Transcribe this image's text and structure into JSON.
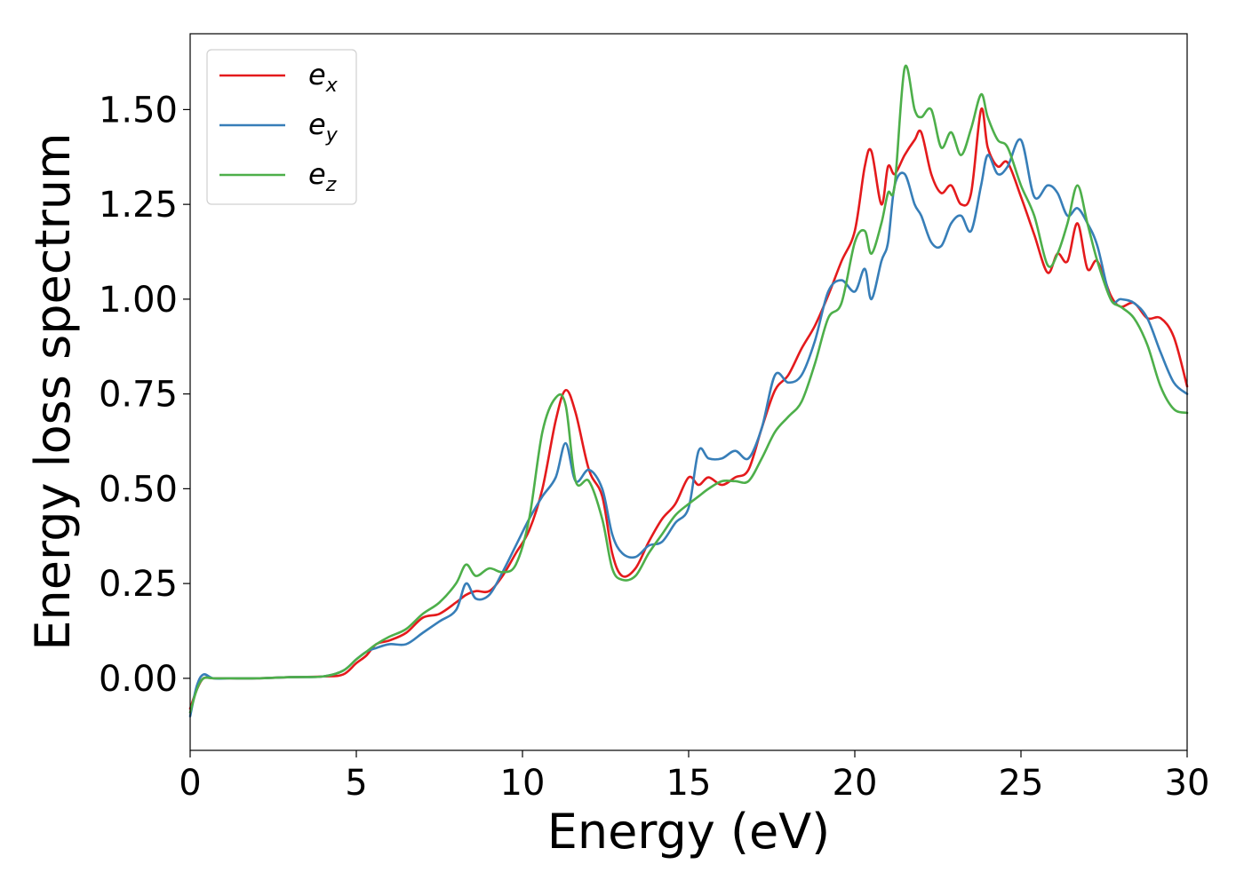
{
  "chart_data": {
    "type": "line",
    "title": "",
    "xlabel": "Energy (eV)",
    "ylabel": "Energy loss spectrum",
    "xlim": [
      0,
      30
    ],
    "ylim": [
      -0.19,
      1.7
    ],
    "xticks": [
      0,
      5,
      10,
      15,
      20,
      25,
      30
    ],
    "xtick_labels": [
      "0",
      "5",
      "10",
      "15",
      "20",
      "25",
      "30"
    ],
    "yticks": [
      0.0,
      0.25,
      0.5,
      0.75,
      1.0,
      1.25,
      1.5
    ],
    "ytick_labels": [
      "0.00",
      "0.25",
      "0.50",
      "0.75",
      "1.00",
      "1.25",
      "1.50"
    ],
    "grid": false,
    "legend_position": "upper-left",
    "series": [
      {
        "name": "e_x",
        "legend_base": "e",
        "legend_sub": "x",
        "color": "#e41a1c",
        "x": [
          0,
          0.2,
          0.4,
          0.7,
          1.2,
          2,
          3,
          4,
          4.6,
          5,
          5.3,
          5.6,
          6,
          6.5,
          7,
          7.5,
          8,
          8.3,
          8.6,
          9,
          9.4,
          9.8,
          10.2,
          10.6,
          11,
          11.3,
          11.6,
          12,
          12.4,
          12.7,
          13,
          13.4,
          13.8,
          14.2,
          14.6,
          15,
          15.3,
          15.6,
          16,
          16.4,
          16.8,
          17.2,
          17.6,
          18,
          18.4,
          18.8,
          19.2,
          19.6,
          20,
          20.3,
          20.5,
          20.8,
          21,
          21.2,
          21.5,
          21.8,
          22,
          22.3,
          22.6,
          22.9,
          23.2,
          23.5,
          23.8,
          24,
          24.3,
          24.6,
          25,
          25.4,
          25.8,
          26.1,
          26.4,
          26.7,
          27,
          27.3,
          27.7,
          28,
          28.4,
          28.8,
          29.2,
          29.6,
          30
        ],
        "y": [
          -0.08,
          -0.03,
          0.0,
          0.0,
          0.0,
          0.0,
          0.003,
          0.005,
          0.01,
          0.04,
          0.06,
          0.09,
          0.1,
          0.12,
          0.16,
          0.17,
          0.2,
          0.22,
          0.23,
          0.23,
          0.27,
          0.33,
          0.39,
          0.5,
          0.68,
          0.76,
          0.7,
          0.55,
          0.48,
          0.33,
          0.27,
          0.29,
          0.36,
          0.42,
          0.46,
          0.53,
          0.51,
          0.53,
          0.51,
          0.53,
          0.55,
          0.66,
          0.76,
          0.8,
          0.87,
          0.93,
          1.01,
          1.1,
          1.18,
          1.35,
          1.39,
          1.25,
          1.35,
          1.33,
          1.38,
          1.42,
          1.44,
          1.33,
          1.28,
          1.3,
          1.25,
          1.28,
          1.5,
          1.4,
          1.35,
          1.36,
          1.27,
          1.17,
          1.07,
          1.12,
          1.1,
          1.2,
          1.08,
          1.1,
          1.01,
          0.98,
          0.99,
          0.95,
          0.95,
          0.9,
          0.77
        ]
      },
      {
        "name": "e_y",
        "legend_base": "e",
        "legend_sub": "y",
        "color": "#377eb8",
        "x": [
          0,
          0.2,
          0.4,
          0.7,
          1.2,
          2,
          3,
          4,
          4.6,
          5,
          5.3,
          5.6,
          6,
          6.5,
          7,
          7.5,
          8,
          8.3,
          8.6,
          9,
          9.4,
          9.8,
          10.2,
          10.6,
          11,
          11.3,
          11.6,
          12,
          12.4,
          12.7,
          13,
          13.4,
          13.8,
          14.2,
          14.6,
          15,
          15.3,
          15.6,
          16,
          16.4,
          16.8,
          17.2,
          17.6,
          18,
          18.4,
          18.8,
          19.2,
          19.6,
          20,
          20.3,
          20.5,
          20.8,
          21,
          21.2,
          21.5,
          21.8,
          22,
          22.3,
          22.6,
          22.9,
          23.2,
          23.5,
          23.8,
          24,
          24.3,
          24.6,
          25,
          25.4,
          25.8,
          26.1,
          26.4,
          26.7,
          27,
          27.3,
          27.7,
          28,
          28.4,
          28.8,
          29.2,
          29.6,
          30
        ],
        "y": [
          -0.1,
          -0.02,
          0.01,
          0.0,
          0.0,
          0.0,
          0.003,
          0.005,
          0.02,
          0.05,
          0.07,
          0.08,
          0.09,
          0.09,
          0.12,
          0.15,
          0.18,
          0.25,
          0.21,
          0.22,
          0.28,
          0.35,
          0.42,
          0.48,
          0.53,
          0.62,
          0.52,
          0.55,
          0.5,
          0.38,
          0.33,
          0.32,
          0.35,
          0.36,
          0.41,
          0.45,
          0.6,
          0.58,
          0.58,
          0.6,
          0.58,
          0.66,
          0.8,
          0.78,
          0.8,
          0.89,
          1.02,
          1.05,
          1.02,
          1.08,
          1.0,
          1.1,
          1.15,
          1.3,
          1.33,
          1.25,
          1.22,
          1.15,
          1.14,
          1.2,
          1.22,
          1.18,
          1.3,
          1.38,
          1.33,
          1.35,
          1.42,
          1.27,
          1.3,
          1.28,
          1.22,
          1.24,
          1.2,
          1.14,
          1.0,
          1.0,
          0.99,
          0.95,
          0.86,
          0.78,
          0.75
        ]
      },
      {
        "name": "e_z",
        "legend_base": "e",
        "legend_sub": "z",
        "color": "#4daf4a",
        "x": [
          0,
          0.2,
          0.4,
          0.7,
          1.2,
          2,
          3,
          4,
          4.6,
          5,
          5.3,
          5.6,
          6,
          6.5,
          7,
          7.5,
          8,
          8.3,
          8.6,
          9,
          9.4,
          9.8,
          10.2,
          10.6,
          11,
          11.3,
          11.6,
          12,
          12.4,
          12.7,
          13,
          13.4,
          13.8,
          14.2,
          14.6,
          15,
          15.3,
          15.6,
          16,
          16.4,
          16.8,
          17.2,
          17.6,
          18,
          18.4,
          18.8,
          19.2,
          19.6,
          20,
          20.3,
          20.5,
          20.8,
          21,
          21.2,
          21.5,
          21.8,
          22,
          22.3,
          22.6,
          22.9,
          23.2,
          23.5,
          23.8,
          24,
          24.3,
          24.6,
          25,
          25.4,
          25.8,
          26.1,
          26.4,
          26.7,
          27,
          27.3,
          27.7,
          28,
          28.4,
          28.8,
          29.2,
          29.6,
          30
        ],
        "y": [
          -0.09,
          -0.03,
          0.0,
          0.0,
          0.0,
          0.0,
          0.003,
          0.005,
          0.02,
          0.05,
          0.07,
          0.09,
          0.11,
          0.13,
          0.17,
          0.2,
          0.25,
          0.3,
          0.27,
          0.29,
          0.28,
          0.3,
          0.42,
          0.65,
          0.74,
          0.72,
          0.52,
          0.52,
          0.42,
          0.29,
          0.26,
          0.27,
          0.33,
          0.38,
          0.43,
          0.46,
          0.48,
          0.5,
          0.52,
          0.52,
          0.52,
          0.58,
          0.65,
          0.69,
          0.73,
          0.83,
          0.95,
          0.99,
          1.15,
          1.18,
          1.12,
          1.2,
          1.28,
          1.3,
          1.61,
          1.5,
          1.48,
          1.5,
          1.4,
          1.44,
          1.38,
          1.45,
          1.54,
          1.48,
          1.42,
          1.4,
          1.3,
          1.22,
          1.09,
          1.12,
          1.2,
          1.3,
          1.2,
          1.1,
          1.0,
          0.98,
          0.95,
          0.88,
          0.77,
          0.71,
          0.7
        ]
      }
    ]
  }
}
